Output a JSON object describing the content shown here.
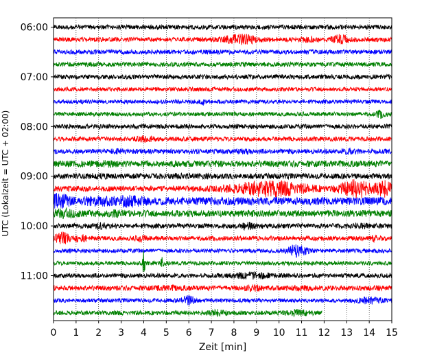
{
  "chart_data": {
    "type": "line",
    "title": "",
    "xlabel": "Zeit  [min]",
    "ylabel": "UTC (Lokalzeit = UTC + 02:00)",
    "xlim": [
      0,
      15
    ],
    "x_ticks": [
      "0",
      "1",
      "2",
      "3",
      "4",
      "5",
      "6",
      "7",
      "8",
      "9",
      "10",
      "11",
      "12",
      "13",
      "14",
      "15"
    ],
    "y_tick_labels": [
      "06:00",
      "07:00",
      "08:00",
      "09:00",
      "10:00",
      "11:00"
    ],
    "grid": "vertical-dotted",
    "trace_colors": [
      "#000000",
      "#ff0000",
      "#0000ff",
      "#008000"
    ],
    "series": [
      {
        "start": "06:00",
        "end_minute": 15,
        "amplitude": 0.2,
        "bursts": []
      },
      {
        "start": "06:15",
        "end_minute": 15,
        "amplitude": 0.2,
        "bursts": [
          [
            8.3,
            0.7,
            0.55
          ],
          [
            11.3,
            0.4,
            0.3
          ],
          [
            12.7,
            0.4,
            0.5
          ]
        ]
      },
      {
        "start": "06:30",
        "end_minute": 15,
        "amplitude": 0.2,
        "bursts": []
      },
      {
        "start": "06:45",
        "end_minute": 15,
        "amplitude": 0.2,
        "bursts": []
      },
      {
        "start": "07:00",
        "end_minute": 15,
        "amplitude": 0.2,
        "bursts": []
      },
      {
        "start": "07:15",
        "end_minute": 15,
        "amplitude": 0.18,
        "bursts": []
      },
      {
        "start": "07:30",
        "end_minute": 15,
        "amplitude": 0.18,
        "bursts": [
          [
            6.6,
            0.1,
            0.4
          ]
        ]
      },
      {
        "start": "07:45",
        "end_minute": 15,
        "amplitude": 0.18,
        "bursts": [
          [
            14.5,
            0.2,
            0.4
          ]
        ]
      },
      {
        "start": "08:00",
        "end_minute": 15,
        "amplitude": 0.2,
        "bursts": [
          [
            14.9,
            0.1,
            0.3
          ]
        ]
      },
      {
        "start": "08:15",
        "end_minute": 15,
        "amplitude": 0.2,
        "bursts": [
          [
            4.1,
            0.4,
            0.35
          ]
        ]
      },
      {
        "start": "08:30",
        "end_minute": 15,
        "amplitude": 0.22,
        "bursts": [
          [
            2.8,
            0.2,
            0.3
          ],
          [
            8.5,
            0.3,
            0.3
          ],
          [
            13.2,
            0.3,
            0.35
          ]
        ]
      },
      {
        "start": "08:45",
        "end_minute": 15,
        "amplitude": 0.28,
        "bursts": [
          [
            2.4,
            0.3,
            0.35
          ]
        ]
      },
      {
        "start": "09:00",
        "end_minute": 15,
        "amplitude": 0.25,
        "bursts": [
          [
            2.0,
            0.4,
            0.3
          ],
          [
            5.5,
            0.4,
            0.3
          ]
        ]
      },
      {
        "start": "09:15",
        "end_minute": 15,
        "amplitude": 0.25,
        "bursts": [
          [
            9.6,
            1.6,
            0.8
          ],
          [
            13.4,
            0.7,
            0.9
          ],
          [
            14.6,
            0.4,
            0.9
          ]
        ]
      },
      {
        "start": "09:30",
        "end_minute": 15,
        "amplitude": 0.35,
        "bursts": [
          [
            0.3,
            0.4,
            0.8
          ],
          [
            2.1,
            0.9,
            0.5
          ],
          [
            3.3,
            0.7,
            0.6
          ],
          [
            14.2,
            0.2,
            0.35
          ]
        ]
      },
      {
        "start": "09:45",
        "end_minute": 15,
        "amplitude": 0.3,
        "bursts": [
          [
            0.5,
            0.5,
            0.5
          ],
          [
            2.8,
            0.3,
            0.4
          ]
        ]
      },
      {
        "start": "10:00",
        "end_minute": 15,
        "amplitude": 0.22,
        "bursts": [
          [
            2.1,
            0.3,
            0.4
          ],
          [
            8.6,
            0.3,
            0.4
          ],
          [
            13.6,
            0.3,
            0.35
          ]
        ]
      },
      {
        "start": "10:15",
        "end_minute": 15,
        "amplitude": 0.2,
        "bursts": [
          [
            0.4,
            0.3,
            0.6
          ],
          [
            1.2,
            0.3,
            0.4
          ],
          [
            3.9,
            0.2,
            0.4
          ],
          [
            14.2,
            0.3,
            0.35
          ]
        ]
      },
      {
        "start": "10:30",
        "end_minute": 15,
        "amplitude": 0.18,
        "bursts": [
          [
            10.8,
            0.4,
            0.65
          ]
        ]
      },
      {
        "start": "10:45",
        "end_minute": 15,
        "amplitude": 0.18,
        "bursts": [
          [
            4.0,
            0.05,
            1.4
          ],
          [
            4.8,
            0.06,
            0.6
          ]
        ]
      },
      {
        "start": "11:00",
        "end_minute": 15,
        "amplitude": 0.2,
        "bursts": [
          [
            8.8,
            0.8,
            0.35
          ]
        ]
      },
      {
        "start": "11:15",
        "end_minute": 15,
        "amplitude": 0.22,
        "bursts": [
          [
            5.1,
            0.6,
            0.3
          ],
          [
            8.9,
            0.4,
            0.35
          ],
          [
            10.9,
            0.5,
            0.3
          ]
        ]
      },
      {
        "start": "11:30",
        "end_minute": 15,
        "amplitude": 0.18,
        "bursts": [
          [
            6.0,
            0.3,
            0.5
          ],
          [
            14.0,
            0.5,
            0.4
          ]
        ]
      },
      {
        "start": "11:45",
        "end_minute": 11.9,
        "amplitude": 0.2,
        "bursts": [
          [
            7.2,
            0.3,
            0.4
          ],
          [
            10.8,
            0.5,
            0.35
          ]
        ]
      }
    ]
  }
}
